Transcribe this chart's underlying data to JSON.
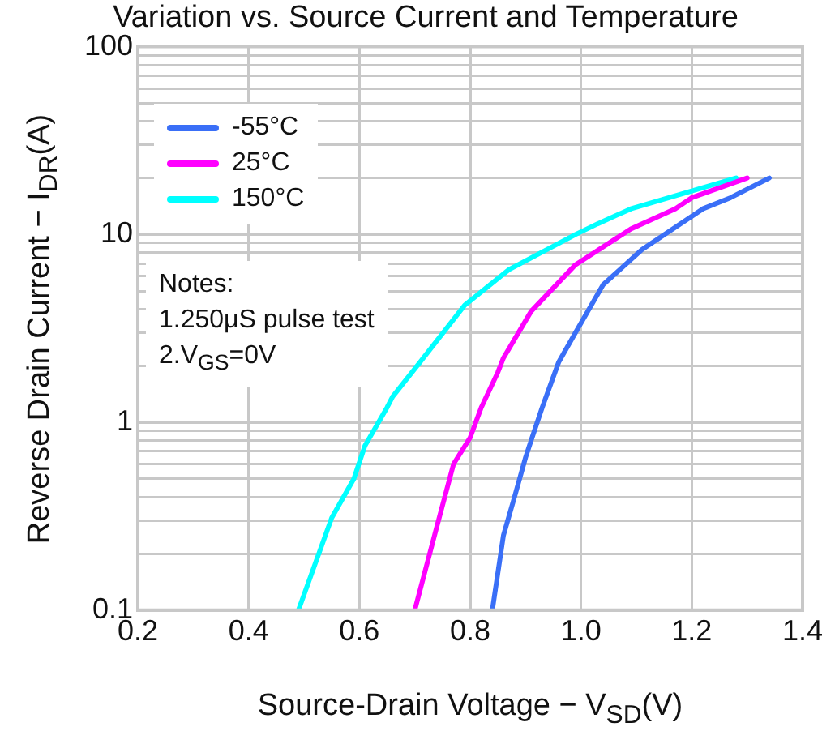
{
  "chart_data": {
    "type": "line",
    "title": "Variation vs. Source Current and Temperature",
    "xlabel": "Source-Drain Voltage  −  V$_{SD}$(V)",
    "ylabel": "Reverse Drain Current  −  I$_{DR}$(A)",
    "annotations": [
      "Notes:",
      "1.250μS pulse test",
      "2.V$_{GS}$=0V"
    ],
    "log": "y",
    "grid": true,
    "legend": "top left",
    "marker": "none",
    "line_style": "solid",
    "xlim": [
      0.2,
      1.4
    ],
    "xticks": [
      {
        "value": 0.2,
        "label": "0.2"
      },
      {
        "value": 0.4,
        "label": "0.4"
      },
      {
        "value": 0.6,
        "label": "0.6"
      },
      {
        "value": 0.8,
        "label": "0.8"
      },
      {
        "value": 1.0,
        "label": "1.0"
      },
      {
        "value": 1.2,
        "label": "1.2"
      },
      {
        "value": 1.4,
        "label": "1.4"
      }
    ],
    "ylim": [
      0.1,
      100
    ],
    "yticks": [
      0.1,
      {
        "value": 0.2,
        "label": null
      },
      {
        "value": 0.3,
        "label": null
      },
      {
        "value": 0.4,
        "label": null
      },
      {
        "value": 0.5,
        "label": null
      },
      {
        "value": 0.6,
        "label": null
      },
      {
        "value": 0.7,
        "label": null
      },
      {
        "value": 0.8,
        "label": null
      },
      {
        "value": 0.9,
        "label": null
      },
      1,
      {
        "value": 2,
        "label": null
      },
      {
        "value": 3,
        "label": null
      },
      {
        "value": 4,
        "label": null
      },
      {
        "value": 5,
        "label": null
      },
      {
        "value": 6,
        "label": null
      },
      {
        "value": 7,
        "label": null
      },
      {
        "value": 8,
        "label": null
      },
      {
        "value": 9,
        "label": null
      },
      10,
      {
        "value": 20,
        "label": null
      },
      {
        "value": 30,
        "label": null
      },
      {
        "value": 40,
        "label": null
      },
      {
        "value": 50,
        "label": null
      },
      {
        "value": 60,
        "label": null
      },
      {
        "value": 70,
        "label": null
      },
      {
        "value": 80,
        "label": null
      },
      {
        "value": 90,
        "label": null
      },
      100
    ],
    "series": [
      {
        "name": "-55°C",
        "color": "#3a6ff7",
        "x": [
          0.84,
          0.86,
          0.88,
          0.9,
          0.91,
          0.93,
          0.96,
          0.99,
          1.04,
          1.11,
          1.22,
          1.27,
          1.34
        ],
        "values": [
          0.1,
          0.25,
          0.4,
          0.65,
          0.8,
          1.2,
          2.1,
          3,
          5.4,
          8.3,
          13.7,
          15.7,
          20
        ]
      },
      {
        "name": "25°C",
        "color": "#ff00ff",
        "x": [
          0.7,
          0.74,
          0.77,
          0.8,
          0.82,
          0.85,
          0.86,
          0.91,
          0.99,
          1.09,
          1.17,
          1.2,
          1.3
        ],
        "values": [
          0.1,
          0.28,
          0.6,
          0.83,
          1.2,
          1.85,
          2.2,
          3.9,
          6.9,
          10.7,
          13.7,
          15.7,
          20
        ]
      },
      {
        "name": "150°C",
        "color": "#00ffff",
        "x": [
          0.49,
          0.55,
          0.59,
          0.61,
          0.65,
          0.66,
          0.71,
          0.79,
          0.87,
          0.99,
          1.03,
          1.09,
          1.28
        ],
        "values": [
          0.1,
          0.31,
          0.5,
          0.75,
          1.2,
          1.37,
          2.1,
          4.2,
          6.5,
          10,
          11.4,
          13.7,
          20
        ]
      }
    ]
  }
}
